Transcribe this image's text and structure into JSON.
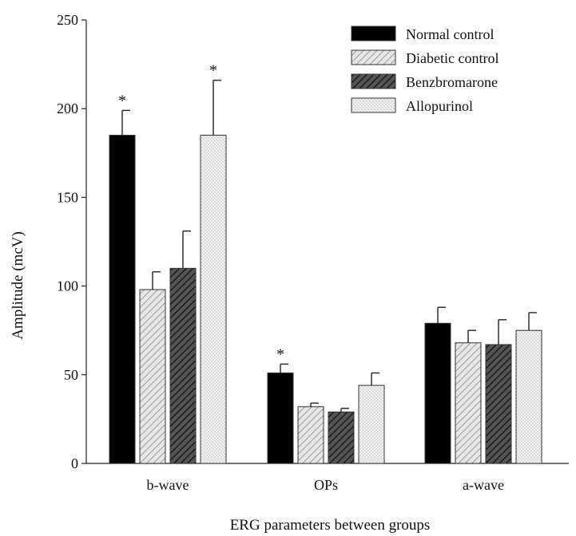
{
  "chart_data": {
    "type": "bar",
    "title": "",
    "xlabel": "ERG parameters between groups",
    "ylabel": "Amplitude (mcV)",
    "ylim": [
      0,
      250
    ],
    "yticks": [
      0,
      50,
      100,
      150,
      200,
      250
    ],
    "categories": [
      "b-wave",
      "OPs",
      "a-wave"
    ],
    "legend_position": "top-right",
    "series": [
      {
        "name": "Normal control",
        "pattern": "solid-black",
        "values": [
          185,
          51,
          79
        ],
        "errors": [
          14,
          5,
          9
        ],
        "significant": [
          true,
          true,
          false
        ]
      },
      {
        "name": "Diabetic control",
        "pattern": "light-diagonal-hatch",
        "values": [
          98,
          32,
          68
        ],
        "errors": [
          10,
          2,
          7
        ],
        "significant": [
          false,
          false,
          false
        ]
      },
      {
        "name": "Benzbromarone",
        "pattern": "dark-diagonal-hatch",
        "values": [
          110,
          29,
          67
        ],
        "errors": [
          21,
          2,
          14
        ],
        "significant": [
          false,
          false,
          false
        ]
      },
      {
        "name": "Allopurinol",
        "pattern": "light-dots",
        "values": [
          185,
          44,
          75
        ],
        "errors": [
          31,
          7,
          10
        ],
        "significant": [
          true,
          false,
          false
        ]
      }
    ],
    "significance_marker": "*"
  }
}
